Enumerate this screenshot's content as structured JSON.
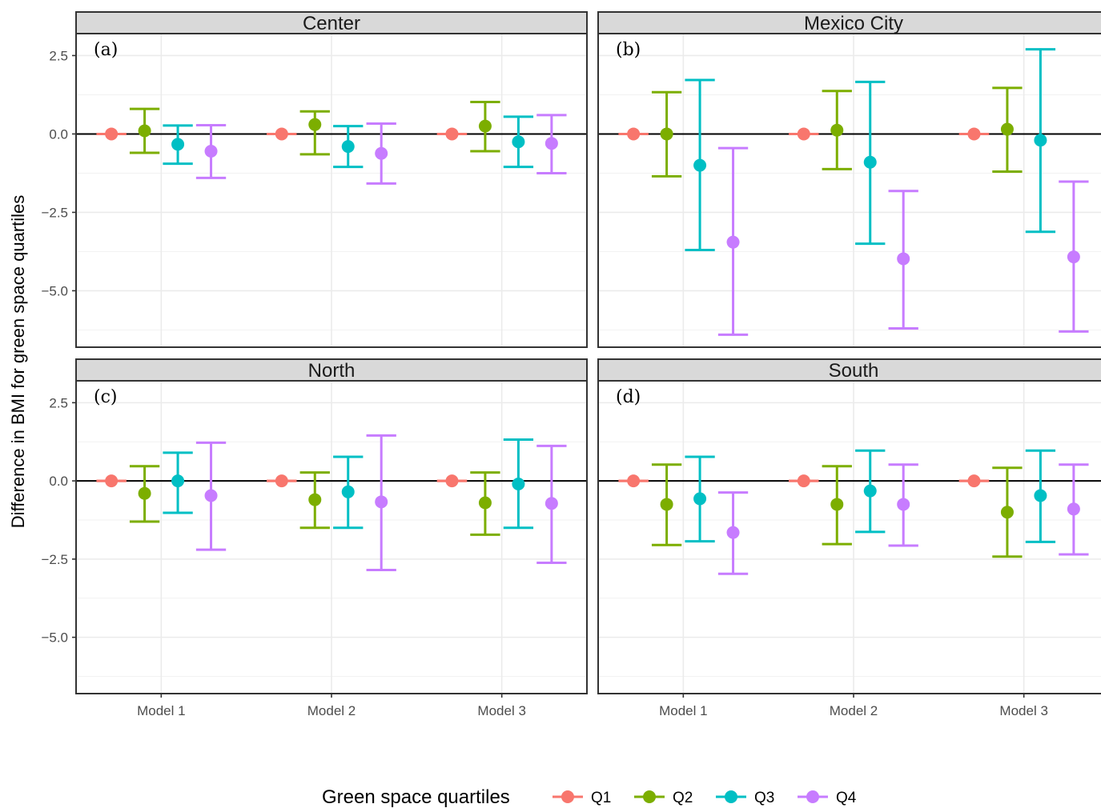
{
  "chart_data": {
    "type": "errorbar",
    "ylabel": "Difference in BMI for green space quartiles",
    "xlabel": "",
    "categories": [
      "Model 1",
      "Model 2",
      "Model 3"
    ],
    "ylim": [
      -6.8,
      3.2
    ],
    "yticks": [
      2.5,
      0.0,
      -2.5,
      -5.0
    ],
    "ytick_labels": [
      "2.5",
      "0.0",
      "−2.5",
      "−5.0"
    ],
    "reference_line_y": 0,
    "grid": true,
    "legend": {
      "title": "Green space quartiles",
      "position": "bottom",
      "entries": [
        {
          "name": "Q1",
          "color": "#F8766D"
        },
        {
          "name": "Q2",
          "color": "#7CAE00"
        },
        {
          "name": "Q3",
          "color": "#00BFC4"
        },
        {
          "name": "Q4",
          "color": "#C77CFF"
        }
      ]
    },
    "panels": [
      {
        "title": "Center",
        "tag": "(a)",
        "series": [
          {
            "name": "Q1",
            "estimate": [
              0.0,
              0.0,
              0.0
            ],
            "lower": [
              0.0,
              0.0,
              0.0
            ],
            "upper": [
              0.0,
              0.0,
              0.0
            ]
          },
          {
            "name": "Q2",
            "estimate": [
              0.1,
              0.3,
              0.25
            ],
            "lower": [
              -0.6,
              -0.65,
              -0.55
            ],
            "upper": [
              0.8,
              0.72,
              1.02
            ]
          },
          {
            "name": "Q3",
            "estimate": [
              -0.33,
              -0.4,
              -0.25
            ],
            "lower": [
              -0.95,
              -1.05,
              -1.05
            ],
            "upper": [
              0.27,
              0.25,
              0.55
            ]
          },
          {
            "name": "Q4",
            "estimate": [
              -0.55,
              -0.62,
              -0.3
            ],
            "lower": [
              -1.4,
              -1.58,
              -1.25
            ],
            "upper": [
              0.28,
              0.33,
              0.6
            ]
          }
        ]
      },
      {
        "title": "Mexico City",
        "tag": "(b)",
        "series": [
          {
            "name": "Q1",
            "estimate": [
              0.0,
              0.0,
              0.0
            ],
            "lower": [
              0.0,
              0.0,
              0.0
            ],
            "upper": [
              0.0,
              0.0,
              0.0
            ]
          },
          {
            "name": "Q2",
            "estimate": [
              0.0,
              0.12,
              0.15
            ],
            "lower": [
              -1.35,
              -1.12,
              -1.2
            ],
            "upper": [
              1.33,
              1.37,
              1.47
            ]
          },
          {
            "name": "Q3",
            "estimate": [
              -1.0,
              -0.9,
              -0.2
            ],
            "lower": [
              -3.7,
              -3.5,
              -3.12
            ],
            "upper": [
              1.72,
              1.66,
              2.7
            ]
          },
          {
            "name": "Q4",
            "estimate": [
              -3.45,
              -3.98,
              -3.92
            ],
            "lower": [
              -6.4,
              -6.2,
              -6.3
            ],
            "upper": [
              -0.45,
              -1.82,
              -1.52
            ]
          }
        ]
      },
      {
        "title": "North",
        "tag": "(c)",
        "series": [
          {
            "name": "Q1",
            "estimate": [
              0.0,
              0.0,
              0.0
            ],
            "lower": [
              0.0,
              0.0,
              0.0
            ],
            "upper": [
              0.0,
              0.0,
              0.0
            ]
          },
          {
            "name": "Q2",
            "estimate": [
              -0.4,
              -0.6,
              -0.7
            ],
            "lower": [
              -1.3,
              -1.5,
              -1.72
            ],
            "upper": [
              0.47,
              0.27,
              0.27
            ]
          },
          {
            "name": "Q3",
            "estimate": [
              0.0,
              -0.35,
              -0.1
            ],
            "lower": [
              -1.02,
              -1.5,
              -1.5
            ],
            "upper": [
              0.9,
              0.77,
              1.32
            ]
          },
          {
            "name": "Q4",
            "estimate": [
              -0.47,
              -0.67,
              -0.72
            ],
            "lower": [
              -2.2,
              -2.85,
              -2.62
            ],
            "upper": [
              1.22,
              1.45,
              1.12
            ]
          }
        ]
      },
      {
        "title": "South",
        "tag": "(d)",
        "series": [
          {
            "name": "Q1",
            "estimate": [
              0.0,
              0.0,
              0.0
            ],
            "lower": [
              0.0,
              0.0,
              0.0
            ],
            "upper": [
              0.0,
              0.0,
              0.0
            ]
          },
          {
            "name": "Q2",
            "estimate": [
              -0.75,
              -0.75,
              -1.0
            ],
            "lower": [
              -2.05,
              -2.02,
              -2.42
            ],
            "upper": [
              0.52,
              0.47,
              0.42
            ]
          },
          {
            "name": "Q3",
            "estimate": [
              -0.57,
              -0.32,
              -0.47
            ],
            "lower": [
              -1.93,
              -1.63,
              -1.95
            ],
            "upper": [
              0.77,
              0.97,
              0.97
            ]
          },
          {
            "name": "Q4",
            "estimate": [
              -1.65,
              -0.75,
              -0.9
            ],
            "lower": [
              -2.97,
              -2.07,
              -2.35
            ],
            "upper": [
              -0.37,
              0.52,
              0.52
            ]
          }
        ]
      }
    ]
  }
}
